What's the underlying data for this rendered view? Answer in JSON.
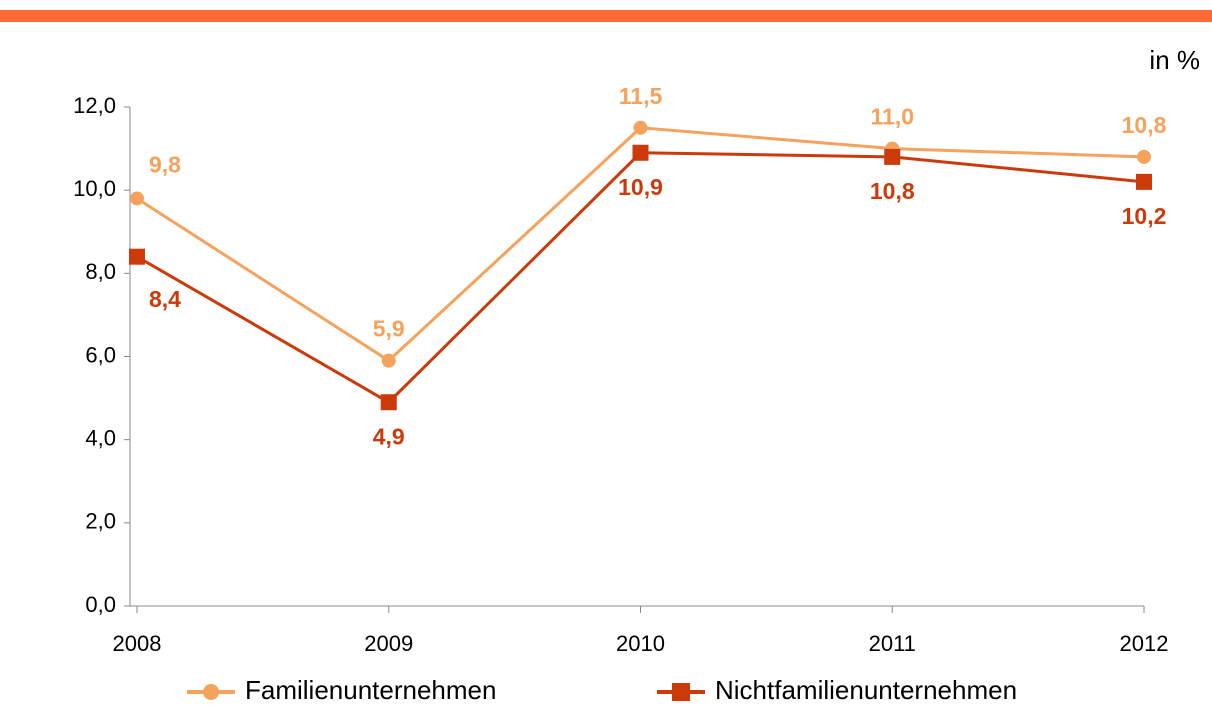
{
  "chart_data": {
    "type": "line",
    "unit_label": "in %",
    "categories": [
      "2008",
      "2009",
      "2010",
      "2011",
      "2012"
    ],
    "series": [
      {
        "name": "Familienunternehmen",
        "color": "#f5a25d",
        "marker": "circle",
        "values": [
          9.8,
          5.9,
          11.5,
          11.0,
          10.8
        ],
        "value_labels": [
          "9,8",
          "5,9",
          "11,5",
          "11,0",
          "10,8"
        ],
        "label_position": "above"
      },
      {
        "name": "Nichtfamilienunternehmen",
        "color": "#cc3a0a",
        "marker": "square",
        "values": [
          8.4,
          4.9,
          10.9,
          10.8,
          10.2
        ],
        "value_labels": [
          "8,4",
          "4,9",
          "10,9",
          "10,8",
          "10,2"
        ],
        "label_position": "below"
      }
    ],
    "ylim": [
      0,
      12
    ],
    "yticks": [
      {
        "value": 0,
        "label": "0,0"
      },
      {
        "value": 2,
        "label": "2,0"
      },
      {
        "value": 4,
        "label": "4,0"
      },
      {
        "value": 6,
        "label": "6,0"
      },
      {
        "value": 8,
        "label": "8,0"
      },
      {
        "value": 10,
        "label": "10,0"
      },
      {
        "value": 12,
        "label": "12,0"
      }
    ],
    "legend": "bottom"
  }
}
